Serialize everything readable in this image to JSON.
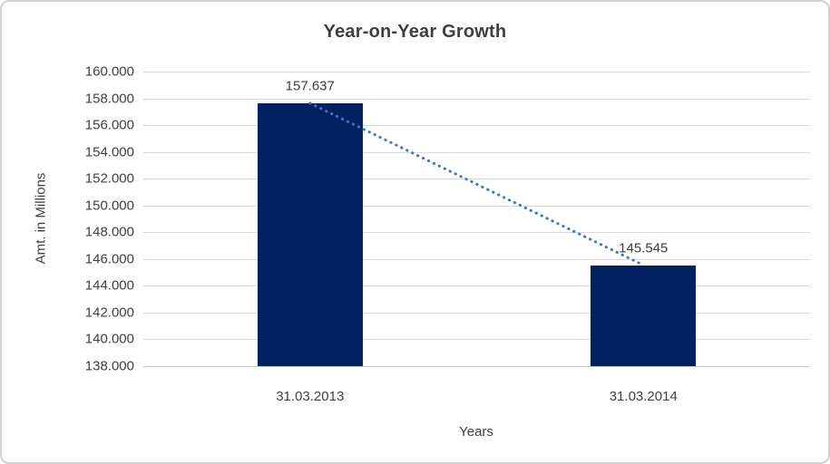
{
  "chart": {
    "title": "Year-on-Year Growth",
    "ylabel": "Amt. in Millions",
    "xlabel": "Years"
  },
  "chart_data": {
    "type": "bar",
    "title": "Year-on-Year Growth",
    "xlabel": "Years",
    "ylabel": "Amt. in Millions",
    "categories": [
      "31.03.2013",
      "31.03.2014"
    ],
    "values": [
      157.637,
      145.545
    ],
    "data_labels": [
      "157.637",
      "145.545"
    ],
    "ylim": [
      138,
      160
    ],
    "ytick_step": 2,
    "ytick_labels": [
      "160.000",
      "158.000",
      "156.000",
      "154.000",
      "152.000",
      "150.000",
      "148.000",
      "146.000",
      "144.000",
      "142.000",
      "140.000",
      "138.000"
    ],
    "grid": "horizontal",
    "legend": "none",
    "trendline": {
      "type": "linear",
      "style": "dotted",
      "connects": [
        "157.637",
        "145.545"
      ]
    }
  },
  "colors": {
    "bar": "#002060",
    "trendline": "#4472c4",
    "gridline": "#d9d9d9",
    "text": "#404040",
    "title_text": "#3f3f3f",
    "frame_border": "#d2d2d2",
    "background": "#ffffff"
  }
}
